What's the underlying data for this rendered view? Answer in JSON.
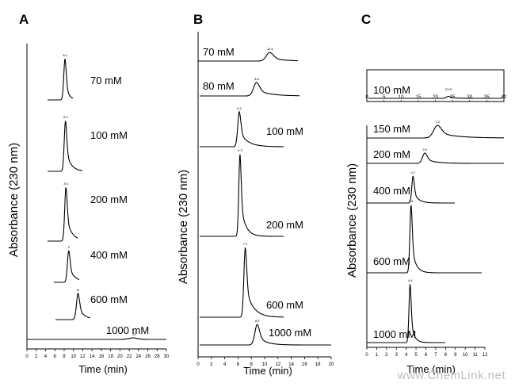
{
  "watermark": "www.ChemLink.net",
  "chart_data": [
    {
      "type": "line",
      "panel": "A",
      "ylabel": "Absorbance (230 nm)",
      "xlabel": "Time (min)",
      "xlim": [
        0,
        30
      ],
      "x_ticks": [
        0,
        2,
        4,
        6,
        8,
        10,
        12,
        14,
        16,
        18,
        20,
        22,
        24,
        26,
        28,
        30
      ],
      "series": [
        {
          "name": "70 mM",
          "peak_time": 8.2
        },
        {
          "name": "100 mM",
          "peak_time": 8.3
        },
        {
          "name": "200 mM",
          "peak_time": 8.4
        },
        {
          "name": "400 mM",
          "peak_time": 9.0
        },
        {
          "name": "600 mM",
          "peak_time": 11.0
        },
        {
          "name": "1000 mM",
          "peak_time": 23.0
        }
      ]
    },
    {
      "type": "line",
      "panel": "B",
      "ylabel": "Absorbance (230 nm)",
      "xlabel": "Time (min)",
      "xlim": [
        0,
        20
      ],
      "x_ticks": [
        0,
        2,
        4,
        6,
        8,
        10,
        12,
        14,
        16,
        18,
        20
      ],
      "series": [
        {
          "name": "70 mM",
          "peak_time": 10.8
        },
        {
          "name": "80 mM",
          "peak_time": 8.8
        },
        {
          "name": "100 mM",
          "peak_time": 6.2
        },
        {
          "name": "200 mM",
          "peak_time": 6.3
        },
        {
          "name": "600 mM",
          "peak_time": 7.1
        },
        {
          "name": "1000 mM",
          "peak_time": 8.9
        }
      ]
    },
    {
      "type": "line",
      "panel": "C",
      "ylabel": "Absorbance (230 nm)",
      "xlabel": "Time (min)",
      "xlim": [
        0,
        12
      ],
      "x_ticks": [
        0,
        1,
        2,
        3,
        4,
        5,
        6,
        7,
        8,
        9,
        10,
        11,
        12
      ],
      "series": [
        {
          "name": "150 mM",
          "peak_time": 7.2
        },
        {
          "name": "200 mM",
          "peak_time": 5.9
        },
        {
          "name": "400 mM",
          "peak_time": 4.7
        },
        {
          "name": "600 mM",
          "peak_time": 4.5
        },
        {
          "name": "1000 mM",
          "peak_time": 4.4
        }
      ],
      "inset": {
        "series_name": "100 mM",
        "xlim": [
          0,
          40
        ],
        "x_ticks": [
          0,
          5,
          10,
          15,
          20,
          25,
          30,
          35,
          40
        ],
        "peak_time": 23.8
      }
    }
  ]
}
